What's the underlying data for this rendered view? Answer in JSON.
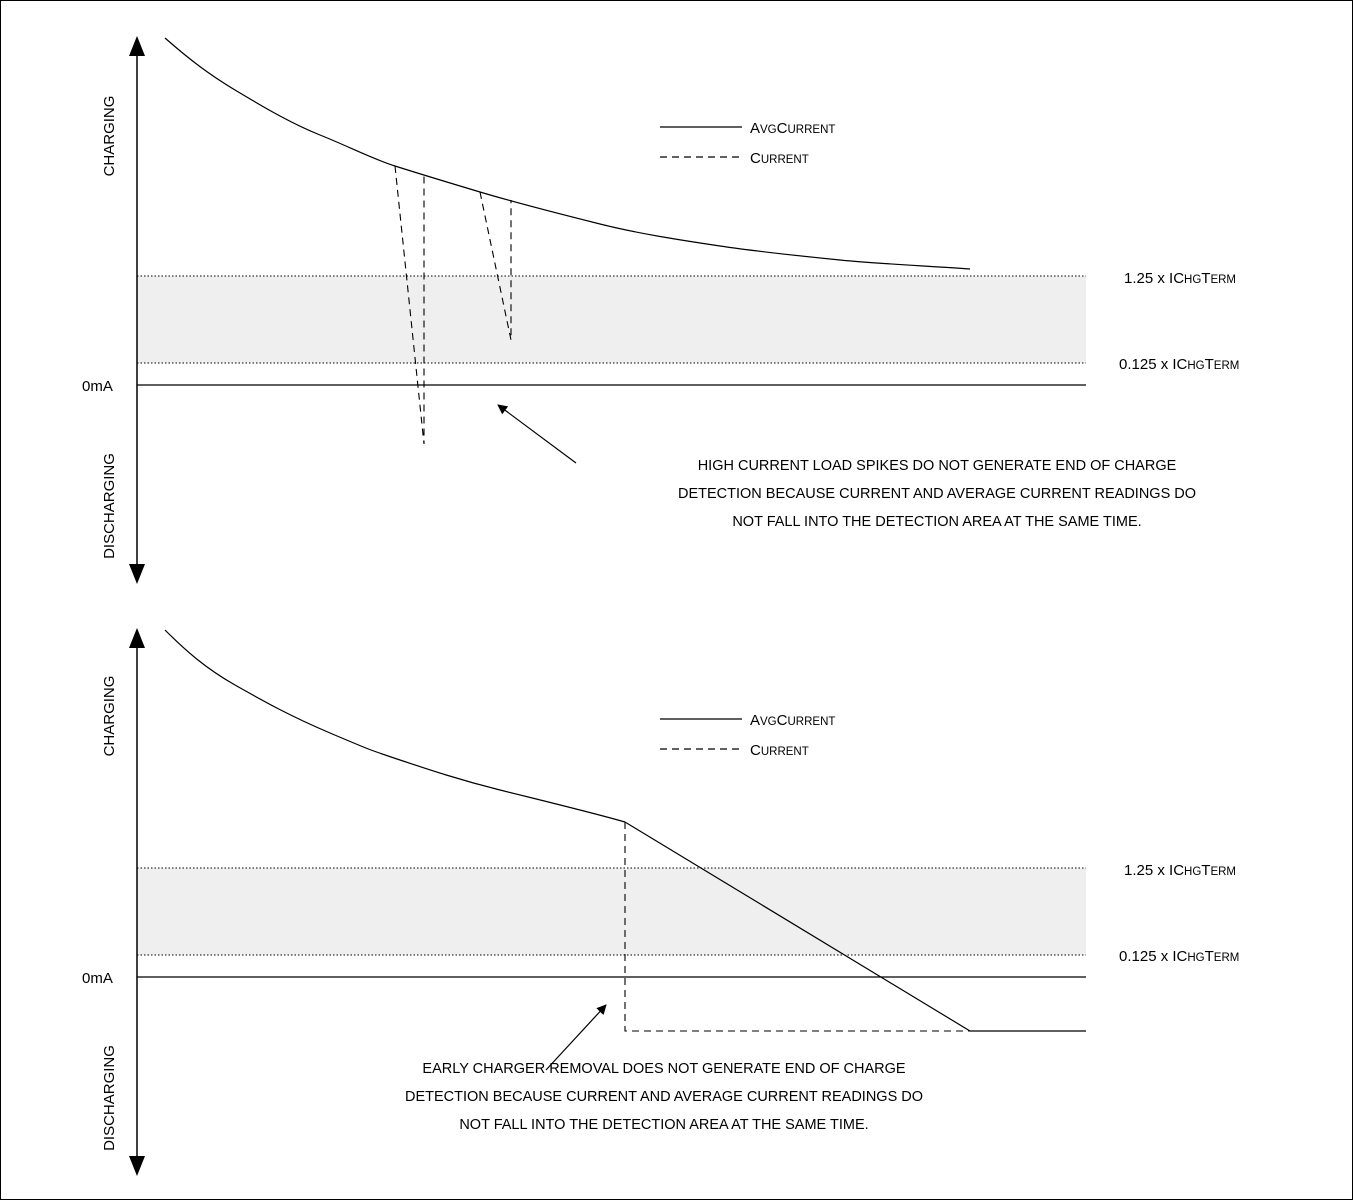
{
  "panels": [
    {
      "id": "top",
      "axis": {
        "charging": "CHARGING",
        "discharging": "DISCHARGING",
        "zero": "0mA"
      },
      "legend": {
        "avg": {
          "cap": "A",
          "small": "VG",
          "cap2": "C",
          "small2": "URRENT"
        },
        "cur": {
          "cap": "C",
          "small": "URRENT"
        }
      },
      "thresholds": {
        "upper": {
          "prefix": "1.25 x IC",
          "s1": "HG",
          "c": "T",
          "s2": "ERM"
        },
        "lower": {
          "prefix": "0.125 x IC",
          "s1": "HG",
          "c": "T",
          "s2": "ERM"
        }
      },
      "annotation": [
        "HIGH CURRENT LOAD SPIKES DO NOT GENERATE END OF CHARGE",
        "DETECTION BECAUSE CURRENT AND AVERAGE CURRENT READINGS DO",
        "NOT FALL INTO THE DETECTION AREA AT THE SAME TIME."
      ]
    },
    {
      "id": "bottom",
      "axis": {
        "charging": "CHARGING",
        "discharging": "DISCHARGING",
        "zero": "0mA"
      },
      "legend": {
        "avg": {
          "cap": "A",
          "small": "VG",
          "cap2": "C",
          "small2": "URRENT"
        },
        "cur": {
          "cap": "C",
          "small": "URRENT"
        }
      },
      "thresholds": {
        "upper": {
          "prefix": "1.25 x IC",
          "s1": "HG",
          "c": "T",
          "s2": "ERM"
        },
        "lower": {
          "prefix": "0.125 x IC",
          "s1": "HG",
          "c": "T",
          "s2": "ERM"
        }
      },
      "annotation": [
        "EARLY CHARGER REMOVAL DOES NOT GENERATE END OF CHARGE",
        "DETECTION BECAUSE CURRENT AND AVERAGE CURRENT READINGS DO",
        "NOT FALL INTO THE DETECTION AREA AT THE SAME TIME."
      ]
    }
  ],
  "colors": {
    "band": "#efefef",
    "line": "#000000"
  }
}
